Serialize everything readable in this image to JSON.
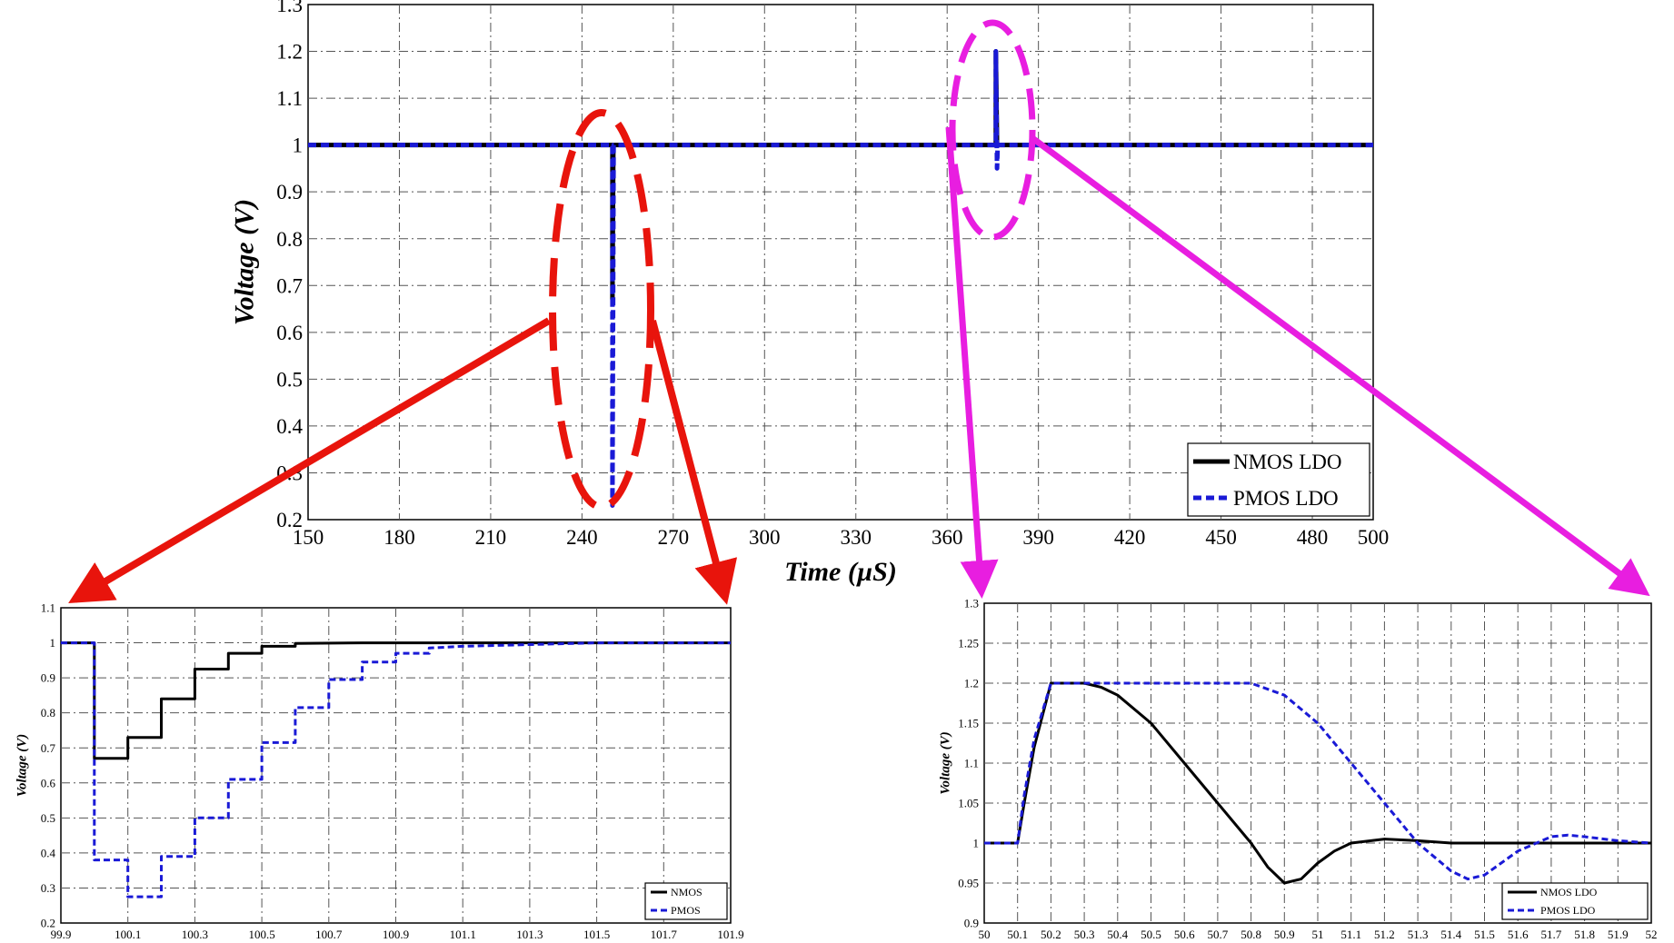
{
  "chart_data": [
    {
      "id": "main",
      "type": "line",
      "xlabel": "Time (µS)",
      "ylabel": "Voltage (V)",
      "xlim": [
        150,
        500
      ],
      "ylim": [
        0.2,
        1.3
      ],
      "xticks": [
        150,
        180,
        210,
        240,
        270,
        300,
        330,
        360,
        390,
        420,
        450,
        480,
        500
      ],
      "yticks": [
        0.2,
        0.3,
        0.4,
        0.5,
        0.6,
        0.7,
        0.8,
        0.9,
        1,
        1.1,
        1.2,
        1.3
      ],
      "grid": true,
      "legend_position": "bottom-right",
      "series": [
        {
          "name": "NMOS LDO",
          "color": "#000000",
          "dash": false,
          "x": [
            150,
            250,
            250,
            250.3,
            376,
            376,
            376.4,
            500
          ],
          "y": [
            1,
            1,
            0.67,
            1,
            1,
            1.2,
            1,
            1
          ]
        },
        {
          "name": "PMOS LDO",
          "color": "#1a1ad6",
          "dash": true,
          "x": [
            150,
            250,
            250,
            250.4,
            376,
            376,
            376.4,
            376.6,
            500
          ],
          "y": [
            1,
            1,
            0.23,
            1,
            1,
            1.2,
            0.95,
            1,
            1
          ]
        }
      ]
    },
    {
      "id": "zoom-left",
      "type": "line",
      "xlabel": "Time (µS)",
      "ylabel": "Voltage (V)",
      "xlim": [
        99.9,
        101.9
      ],
      "ylim": [
        0.2,
        1.1
      ],
      "xticks": [
        99.9,
        100.1,
        100.3,
        100.5,
        100.7,
        100.9,
        101.1,
        101.3,
        101.5,
        101.7,
        101.9
      ],
      "yticks": [
        0.2,
        0.3,
        0.4,
        0.5,
        0.6,
        0.7,
        0.8,
        0.9,
        1,
        1.1
      ],
      "grid": true,
      "legend_position": "bottom-right",
      "series": [
        {
          "name": "NMOS",
          "color": "#000000",
          "dash": false,
          "x": [
            99.9,
            100.0,
            100.0,
            100.1,
            100.1,
            100.2,
            100.2,
            100.3,
            100.3,
            100.4,
            100.4,
            100.5,
            100.5,
            100.6,
            100.6,
            100.8,
            101.0,
            101.9
          ],
          "y": [
            1,
            1,
            0.67,
            0.67,
            0.73,
            0.73,
            0.84,
            0.84,
            0.925,
            0.925,
            0.97,
            0.97,
            0.99,
            0.99,
            0.998,
            1,
            1,
            1
          ]
        },
        {
          "name": "PMOS",
          "color": "#1a1ad6",
          "dash": true,
          "x": [
            99.9,
            100.0,
            100.0,
            100.1,
            100.1,
            100.2,
            100.2,
            100.3,
            100.3,
            100.4,
            100.4,
            100.5,
            100.5,
            100.6,
            100.6,
            100.7,
            100.7,
            100.8,
            100.8,
            100.9,
            100.9,
            101.0,
            101.0,
            101.1,
            101.3,
            101.5,
            101.9
          ],
          "y": [
            1,
            1,
            0.38,
            0.38,
            0.275,
            0.275,
            0.39,
            0.39,
            0.5,
            0.5,
            0.61,
            0.61,
            0.715,
            0.715,
            0.815,
            0.815,
            0.895,
            0.895,
            0.945,
            0.945,
            0.97,
            0.97,
            0.985,
            0.99,
            0.995,
            1,
            1
          ]
        }
      ]
    },
    {
      "id": "zoom-right",
      "type": "line",
      "xlabel": "Time (µS)",
      "ylabel": "Voltage (V)",
      "xlim": [
        50,
        52
      ],
      "ylim": [
        0.9,
        1.3
      ],
      "xticks": [
        50,
        50.1,
        50.2,
        50.3,
        50.4,
        50.5,
        50.6,
        50.7,
        50.8,
        50.9,
        51,
        51.1,
        51.2,
        51.3,
        51.4,
        51.5,
        51.6,
        51.7,
        51.8,
        51.9,
        52
      ],
      "xtick_labels": [
        "50",
        "50.1",
        "50.2",
        "50.3",
        "50.4",
        "50.5",
        "50.6",
        "50.7",
        "50.8",
        "50.9",
        "51",
        "51.1",
        "51.2",
        "51.3",
        "51.4",
        "51.5",
        "51.6",
        "51.7",
        "51.8",
        "51.9",
        "52"
      ],
      "yticks": [
        0.9,
        0.95,
        1,
        1.05,
        1.1,
        1.15,
        1.2,
        1.25,
        1.3
      ],
      "grid": true,
      "legend_position": "bottom-right",
      "series": [
        {
          "name": "NMOS LDO",
          "color": "#000000",
          "dash": false,
          "x": [
            50,
            50.1,
            50.12,
            50.15,
            50.2,
            50.3,
            50.35,
            50.4,
            50.5,
            50.6,
            50.7,
            50.8,
            50.85,
            50.9,
            50.95,
            51.0,
            51.05,
            51.1,
            51.2,
            51.3,
            51.4,
            51.6,
            52
          ],
          "y": [
            1,
            1,
            1.05,
            1.12,
            1.2,
            1.2,
            1.195,
            1.185,
            1.15,
            1.1,
            1.05,
            1.0,
            0.97,
            0.95,
            0.955,
            0.975,
            0.99,
            1.0,
            1.005,
            1.003,
            1.0,
            1.0,
            1.0
          ]
        },
        {
          "name": "PMOS LDO",
          "color": "#1a1ad6",
          "dash": true,
          "x": [
            50,
            50.1,
            50.12,
            50.15,
            50.2,
            50.4,
            50.6,
            50.8,
            50.9,
            51.0,
            51.1,
            51.2,
            51.3,
            51.4,
            51.45,
            51.5,
            51.6,
            51.7,
            51.75,
            51.8,
            51.9,
            52
          ],
          "y": [
            1,
            1,
            1.06,
            1.13,
            1.2,
            1.2,
            1.2,
            1.2,
            1.185,
            1.15,
            1.1,
            1.05,
            1.0,
            0.965,
            0.955,
            0.96,
            0.99,
            1.008,
            1.01,
            1.008,
            1.003,
            1.0
          ]
        }
      ]
    }
  ]
}
